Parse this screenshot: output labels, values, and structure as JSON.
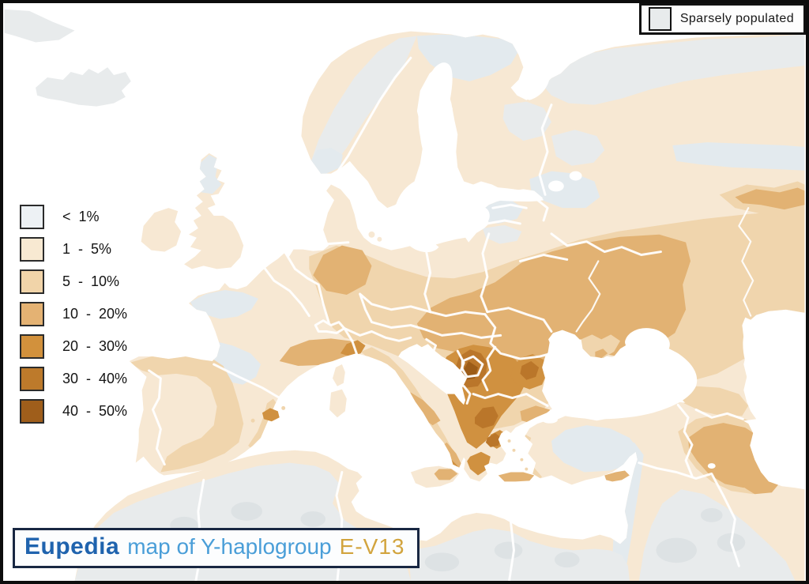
{
  "map": {
    "name": "Distribution map of Y-haplogroup E-V13 in Europe",
    "sparse_legend": {
      "label": "Sparsely populated"
    },
    "legend": {
      "items": [
        {
          "label": "<  1%",
          "color": "#edf1f4"
        },
        {
          "label": "1  -  5%",
          "color": "#f8e9d2"
        },
        {
          "label": "5  -  10%",
          "color": "#f1d4a9"
        },
        {
          "label": "10  -  20%",
          "color": "#e4b273"
        },
        {
          "label": "20  -  30%",
          "color": "#d2913c"
        },
        {
          "label": "30  -  40%",
          "color": "#bd7a2b"
        },
        {
          "label": "40  -  50%",
          "color": "#9f5e1b"
        }
      ]
    },
    "title": {
      "brand": "Eupedia",
      "text": "map of Y-haplogroup",
      "haplogroup": "E-V13"
    },
    "palette": {
      "sea": "#ffffff",
      "land_1_5": "#f7e8d3",
      "below_1": "#e3eaee",
      "sparse": "#e8ebec",
      "sparse_patch": "#dde2e4",
      "pct_5_10": "#f0d5ad",
      "pct_10_20": "#e2b273",
      "pct_20_30": "#d09140",
      "pct_30_40": "#ba762a",
      "pct_40_50": "#9c5c18",
      "border_lines": "#ffffff",
      "title_brand": "#1f63ae",
      "title_text": "#4a9ed8",
      "title_haplogroup": "#d2a43e"
    }
  }
}
